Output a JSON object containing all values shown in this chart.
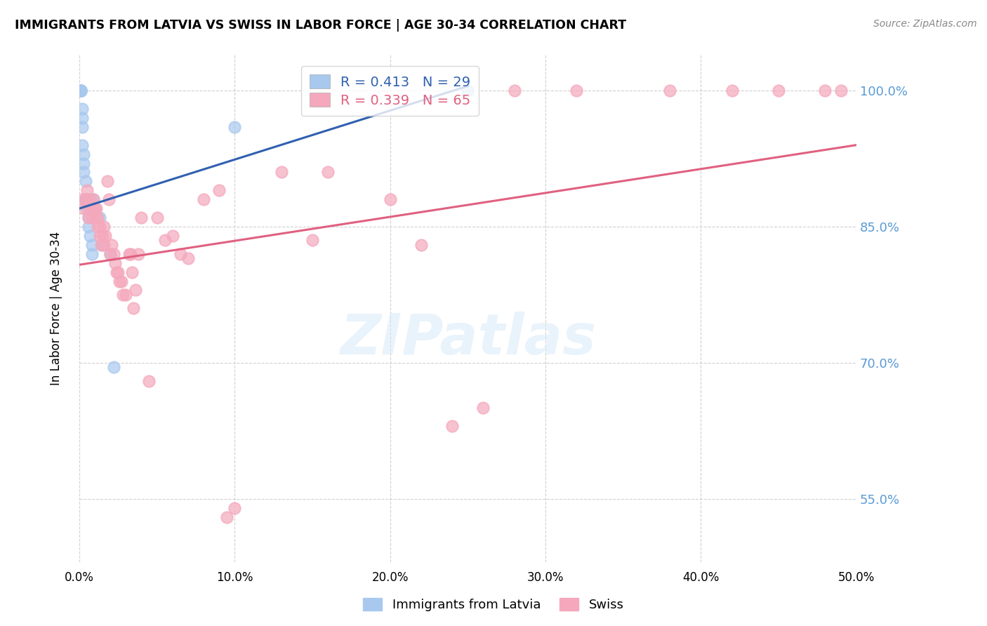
{
  "title": "IMMIGRANTS FROM LATVIA VS SWISS IN LABOR FORCE | AGE 30-34 CORRELATION CHART",
  "source": "Source: ZipAtlas.com",
  "ylabel": "In Labor Force | Age 30-34",
  "xmin": 0.0,
  "xmax": 0.5,
  "ymin": 0.48,
  "ymax": 1.04,
  "yticks": [
    0.55,
    0.7,
    0.85,
    1.0
  ],
  "xticks": [
    0.0,
    0.1,
    0.2,
    0.3,
    0.4,
    0.5
  ],
  "blue_R": 0.413,
  "blue_N": 29,
  "pink_R": 0.339,
  "pink_N": 65,
  "blue_color": "#A8C8EE",
  "pink_color": "#F5A8BC",
  "blue_line_color": "#3060B0",
  "pink_line_color": "#E06080",
  "legend_blue_label": "Immigrants from Latvia",
  "legend_pink_label": "Swiss",
  "watermark": "ZIPatlas",
  "blue_line_x0": 0.0,
  "blue_line_y0": 0.87,
  "blue_line_x1": 0.25,
  "blue_line_y1": 1.005,
  "pink_line_x0": 0.0,
  "pink_line_x1": 0.5,
  "pink_line_y0": 0.808,
  "pink_line_y1": 0.94,
  "blue_x": [
    0.001,
    0.001,
    0.001,
    0.001,
    0.001,
    0.002,
    0.002,
    0.002,
    0.002,
    0.003,
    0.003,
    0.003,
    0.004,
    0.004,
    0.005,
    0.005,
    0.006,
    0.006,
    0.007,
    0.008,
    0.008,
    0.009,
    0.01,
    0.013,
    0.015,
    0.02,
    0.022,
    0.1,
    0.25
  ],
  "blue_y": [
    1.0,
    1.0,
    1.0,
    1.0,
    1.0,
    0.98,
    0.97,
    0.96,
    0.94,
    0.93,
    0.92,
    0.91,
    0.9,
    0.88,
    0.88,
    0.87,
    0.86,
    0.85,
    0.84,
    0.83,
    0.82,
    0.88,
    0.87,
    0.86,
    0.83,
    0.82,
    0.695,
    0.96,
    1.0
  ],
  "pink_x": [
    0.002,
    0.003,
    0.004,
    0.005,
    0.006,
    0.007,
    0.007,
    0.008,
    0.008,
    0.009,
    0.01,
    0.011,
    0.011,
    0.012,
    0.012,
    0.013,
    0.013,
    0.014,
    0.015,
    0.016,
    0.016,
    0.017,
    0.018,
    0.019,
    0.02,
    0.021,
    0.022,
    0.023,
    0.024,
    0.025,
    0.026,
    0.027,
    0.028,
    0.03,
    0.032,
    0.033,
    0.034,
    0.035,
    0.036,
    0.038,
    0.04,
    0.045,
    0.05,
    0.055,
    0.06,
    0.065,
    0.07,
    0.08,
    0.09,
    0.095,
    0.1,
    0.13,
    0.15,
    0.16,
    0.2,
    0.22,
    0.24,
    0.26,
    0.28,
    0.32,
    0.38,
    0.42,
    0.45,
    0.48,
    0.49
  ],
  "pink_y": [
    0.88,
    0.87,
    0.88,
    0.89,
    0.86,
    0.87,
    0.88,
    0.86,
    0.87,
    0.88,
    0.87,
    0.86,
    0.87,
    0.85,
    0.86,
    0.85,
    0.84,
    0.83,
    0.84,
    0.83,
    0.85,
    0.84,
    0.9,
    0.88,
    0.82,
    0.83,
    0.82,
    0.81,
    0.8,
    0.8,
    0.79,
    0.79,
    0.775,
    0.775,
    0.82,
    0.82,
    0.8,
    0.76,
    0.78,
    0.82,
    0.86,
    0.68,
    0.86,
    0.835,
    0.84,
    0.82,
    0.815,
    0.88,
    0.89,
    0.53,
    0.54,
    0.91,
    0.835,
    0.91,
    0.88,
    0.83,
    0.63,
    0.65,
    1.0,
    1.0,
    1.0,
    1.0,
    1.0,
    1.0,
    1.0
  ]
}
